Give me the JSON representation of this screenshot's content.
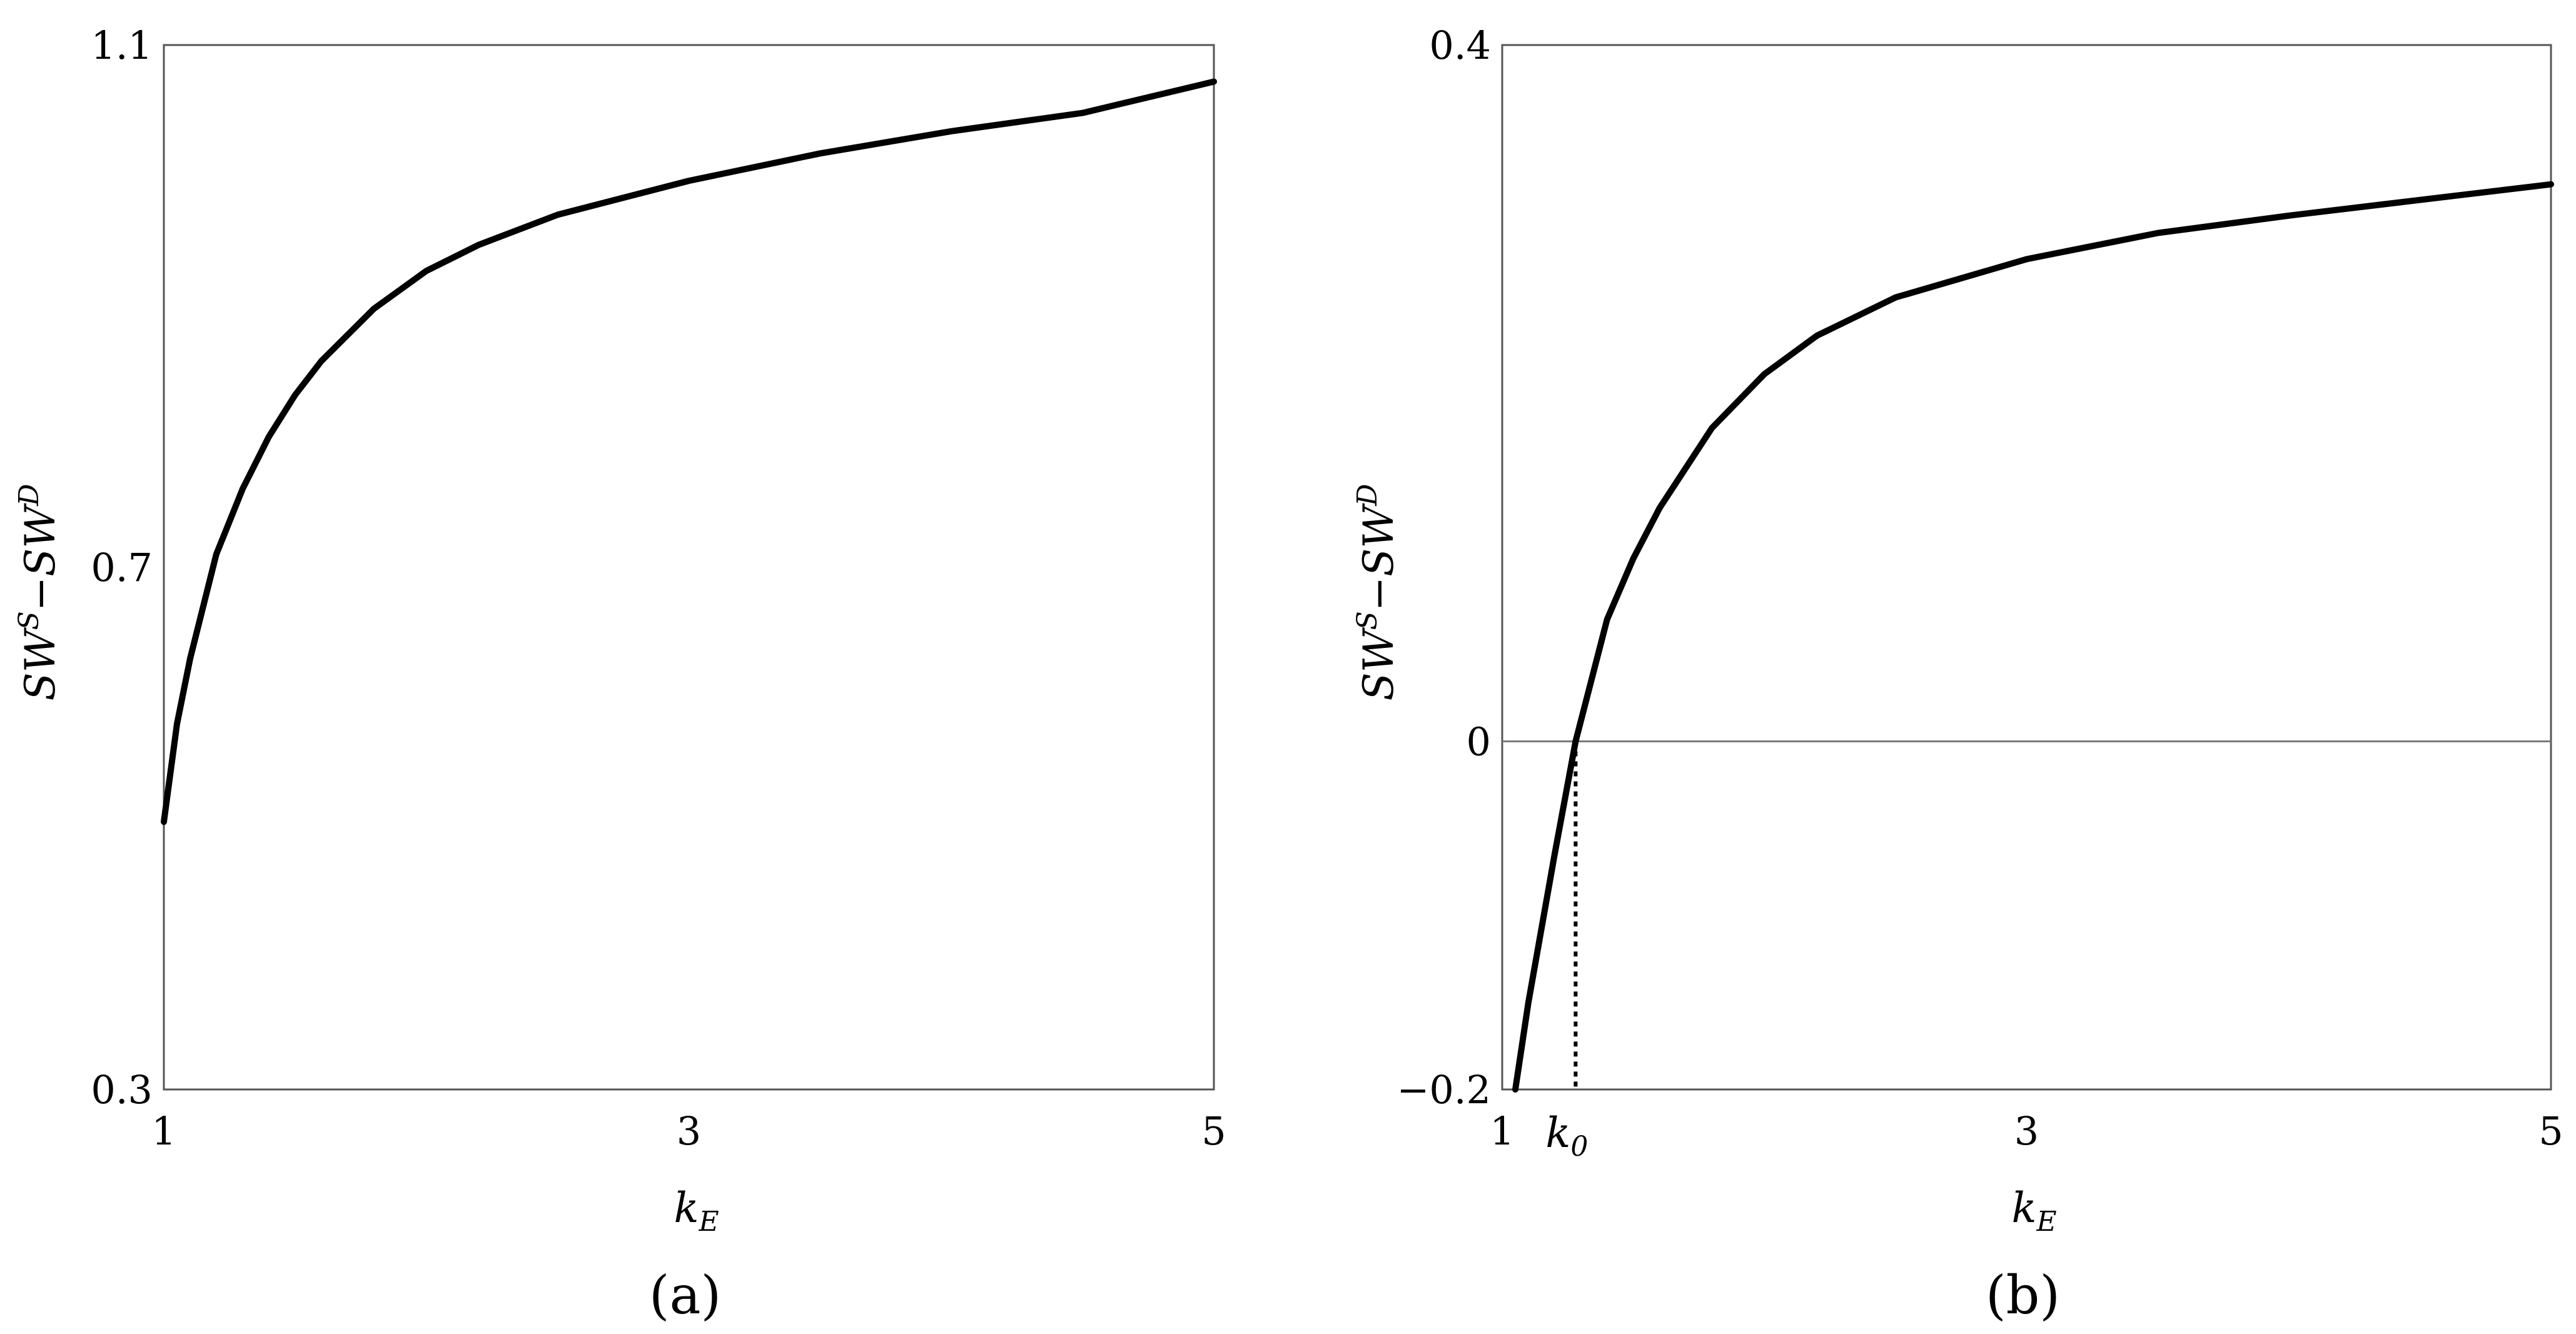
{
  "chart_data": [
    {
      "type": "line",
      "panel_label": "(a)",
      "xlabel": {
        "base": "k",
        "sub": "E"
      },
      "ylabel": {
        "a": "SW",
        "a_sup": "S",
        "sep": "−",
        "b": "SW",
        "b_sup": "D"
      },
      "xlim": [
        1,
        5
      ],
      "ylim": [
        0.3,
        1.1
      ],
      "xticks": [
        "1",
        "3",
        "5"
      ],
      "yticks": [
        "0.3",
        "0.7",
        "1.1"
      ],
      "grid": false,
      "series": [
        {
          "x": [
            1.0,
            1.05,
            1.1,
            1.2,
            1.3,
            1.4,
            1.5,
            1.6,
            1.8,
            2.0,
            2.2,
            2.5,
            3.0,
            3.5,
            4.0,
            4.5,
            5.0
          ],
          "y": [
            0.505,
            0.58,
            0.63,
            0.71,
            0.76,
            0.8,
            0.832,
            0.858,
            0.898,
            0.927,
            0.947,
            0.97,
            0.996,
            1.017,
            1.034,
            1.048,
            1.072
          ]
        }
      ]
    },
    {
      "type": "line",
      "panel_label": "(b)",
      "xlabel": {
        "base": "k",
        "sub": "E"
      },
      "ylabel": {
        "a": "SW",
        "a_sup": "S",
        "sep": "−",
        "b": "SW",
        "b_sup": "D"
      },
      "xlim": [
        1,
        5
      ],
      "ylim": [
        -0.2,
        0.4
      ],
      "xticks": [
        "1",
        "3",
        "5"
      ],
      "yticks": [
        "−0.2",
        "0",
        "0.4"
      ],
      "grid": false,
      "reference_line_y": 0,
      "marker": {
        "label_base": "k",
        "label_sub": "0",
        "x": 1.28
      },
      "series": [
        {
          "x": [
            1.05,
            1.1,
            1.2,
            1.28,
            1.4,
            1.5,
            1.6,
            1.8,
            2.0,
            2.2,
            2.5,
            3.0,
            3.5,
            4.0,
            4.5,
            5.0
          ],
          "y": [
            -0.2,
            -0.15,
            -0.065,
            0.0,
            0.07,
            0.105,
            0.134,
            0.18,
            0.211,
            0.233,
            0.255,
            0.277,
            0.292,
            0.302,
            0.311,
            0.32
          ]
        }
      ]
    }
  ]
}
